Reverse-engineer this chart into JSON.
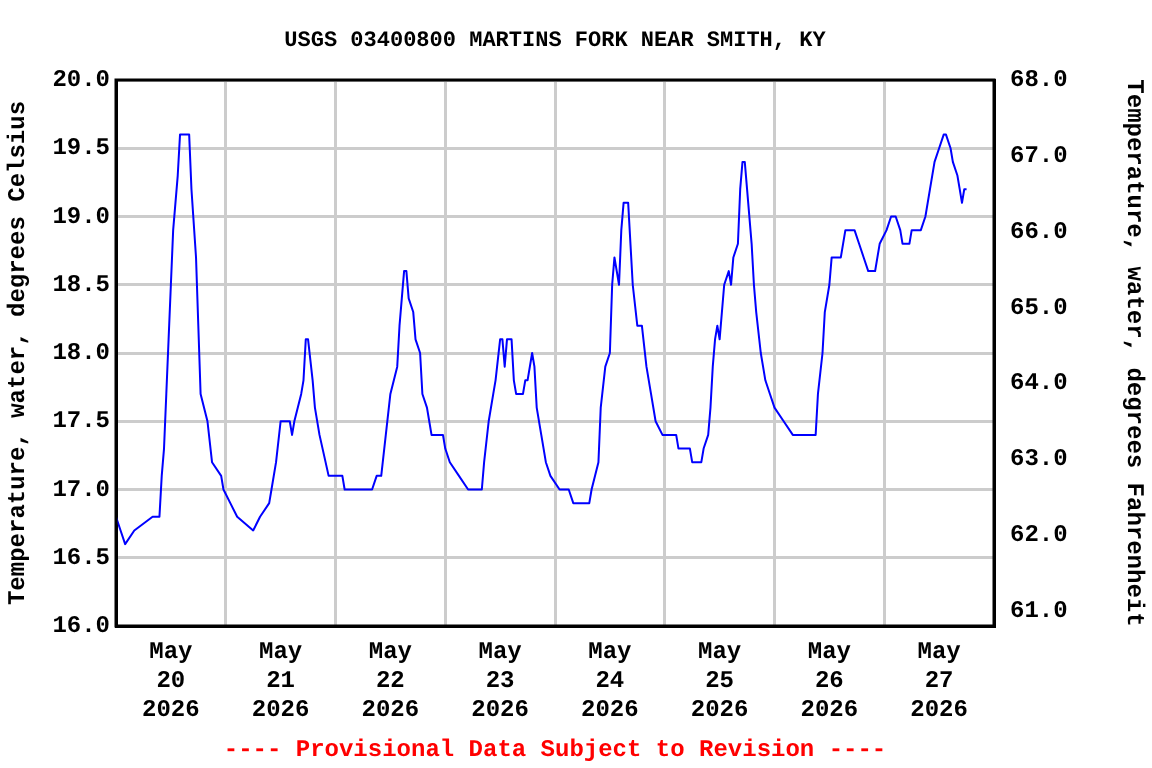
{
  "chart_data": {
    "type": "line",
    "title": "USGS 03400800 MARTINS FORK NEAR SMITH, KY",
    "ylabel": "Temperature, water, degrees Celsius",
    "y2label": "Temperature, water, degrees Fahrenheit",
    "annotations": [
      "---- Provisional Data Subject to Revision ----"
    ],
    "x": [
      "2026-05-20T00:00",
      "2026-05-20T01:00",
      "2026-05-20T02:00",
      "2026-05-20T04:00",
      "2026-05-20T08:00",
      "2026-05-20T09:30",
      "2026-05-20T10:00",
      "2026-05-20T10:30",
      "2026-05-20T11:00",
      "2026-05-20T11:30",
      "2026-05-20T12:00",
      "2026-05-20T12:30",
      "2026-05-20T13:30",
      "2026-05-20T14:00",
      "2026-05-20T16:00",
      "2026-05-20T16:30",
      "2026-05-20T17:30",
      "2026-05-20T18:00",
      "2026-05-20T18:30",
      "2026-05-20T20:00",
      "2026-05-20T21:00",
      "2026-05-20T23:00",
      "2026-05-20T23:30",
      "2026-05-21T01:00",
      "2026-05-21T02:30",
      "2026-05-21T06:00",
      "2026-05-21T07:30",
      "2026-05-21T09:30",
      "2026-05-21T10:00",
      "2026-05-21T11:00",
      "2026-05-21T12:00",
      "2026-05-21T14:00",
      "2026-05-21T14:30",
      "2026-05-21T15:00",
      "2026-05-21T16:30",
      "2026-05-21T17:00",
      "2026-05-21T17:30",
      "2026-05-21T18:00",
      "2026-05-21T19:00",
      "2026-05-21T19:30",
      "2026-05-21T20:30",
      "2026-05-21T22:30",
      "2026-05-22T01:30",
      "2026-05-22T02:00",
      "2026-05-22T08:00",
      "2026-05-22T09:00",
      "2026-05-22T10:00",
      "2026-05-22T11:00",
      "2026-05-22T12:00",
      "2026-05-22T13:30",
      "2026-05-22T14:00",
      "2026-05-22T14:30",
      "2026-05-22T15:00",
      "2026-05-22T15:30",
      "2026-05-22T16:00",
      "2026-05-22T17:00",
      "2026-05-22T17:30",
      "2026-05-22T18:30",
      "2026-05-22T19:00",
      "2026-05-22T20:00",
      "2026-05-22T20:30",
      "2026-05-22T21:00",
      "2026-05-22T23:30",
      "2026-05-23T00:00",
      "2026-05-23T01:00",
      "2026-05-23T03:00",
      "2026-05-23T05:00",
      "2026-05-23T08:00",
      "2026-05-23T08:30",
      "2026-05-23T09:30",
      "2026-05-23T10:30",
      "2026-05-23T11:00",
      "2026-05-23T12:00",
      "2026-05-23T12:30",
      "2026-05-23T13:00",
      "2026-05-23T13:30",
      "2026-05-23T14:30",
      "2026-05-23T15:00",
      "2026-05-23T15:30",
      "2026-05-23T17:00",
      "2026-05-23T17:30",
      "2026-05-23T18:00",
      "2026-05-23T19:00",
      "2026-05-23T19:30",
      "2026-05-23T20:00",
      "2026-05-23T21:00",
      "2026-05-23T22:00",
      "2026-05-23T23:00",
      "2026-05-24T01:00",
      "2026-05-24T03:00",
      "2026-05-24T04:00",
      "2026-05-24T07:30",
      "2026-05-24T08:00",
      "2026-05-24T09:30",
      "2026-05-24T10:00",
      "2026-05-24T11:00",
      "2026-05-24T12:00",
      "2026-05-24T12:30",
      "2026-05-24T13:00",
      "2026-05-24T14:00",
      "2026-05-24T14:30",
      "2026-05-24T15:00",
      "2026-05-24T16:00",
      "2026-05-24T17:00",
      "2026-05-24T18:00",
      "2026-05-24T19:00",
      "2026-05-24T20:00",
      "2026-05-24T21:00",
      "2026-05-24T22:00",
      "2026-05-24T23:30",
      "2026-05-25T02:30",
      "2026-05-25T03:00",
      "2026-05-25T05:30",
      "2026-05-25T06:00",
      "2026-05-25T08:00",
      "2026-05-25T08:30",
      "2026-05-25T09:30",
      "2026-05-25T10:00",
      "2026-05-25T10:30",
      "2026-05-25T11:00",
      "2026-05-25T11:30",
      "2026-05-25T12:00",
      "2026-05-25T13:00",
      "2026-05-25T14:00",
      "2026-05-25T14:30",
      "2026-05-25T15:00",
      "2026-05-25T16:00",
      "2026-05-25T16:30",
      "2026-05-25T17:00",
      "2026-05-25T17:30",
      "2026-05-25T18:00",
      "2026-05-25T19:00",
      "2026-05-25T19:30",
      "2026-05-25T20:00",
      "2026-05-25T21:00",
      "2026-05-25T21:30",
      "2026-05-25T22:00",
      "2026-05-25T23:00",
      "2026-05-26T00:00",
      "2026-05-26T02:00",
      "2026-05-26T04:00",
      "2026-05-26T09:00",
      "2026-05-26T09:30",
      "2026-05-26T10:30",
      "2026-05-26T11:00",
      "2026-05-26T12:00",
      "2026-05-26T12:30",
      "2026-05-26T14:30",
      "2026-05-26T15:30",
      "2026-05-26T17:30",
      "2026-05-26T18:30",
      "2026-05-26T19:30",
      "2026-05-26T20:30",
      "2026-05-26T22:00",
      "2026-05-26T23:00",
      "2026-05-27T00:30",
      "2026-05-27T01:30",
      "2026-05-27T02:30",
      "2026-05-27T03:30",
      "2026-05-27T04:00",
      "2026-05-27T05:30",
      "2026-05-27T06:00",
      "2026-05-27T08:00",
      "2026-05-27T09:00",
      "2026-05-27T10:00",
      "2026-05-27T11:00",
      "2026-05-27T12:00",
      "2026-05-27T13:00",
      "2026-05-27T13:30",
      "2026-05-27T14:30",
      "2026-05-27T15:00",
      "2026-05-27T16:00",
      "2026-05-27T16:30",
      "2026-05-27T17:00",
      "2026-05-27T17:30",
      "2026-05-27T18:00"
    ],
    "series": [
      {
        "color": "#0000ff",
        "values": [
          16.8,
          16.7,
          16.6,
          16.7,
          16.8,
          16.8,
          17.1,
          17.3,
          17.7,
          18.1,
          18.5,
          18.9,
          19.3,
          19.6,
          19.6,
          19.2,
          18.7,
          18.2,
          17.7,
          17.5,
          17.2,
          17.1,
          17.0,
          16.9,
          16.8,
          16.7,
          16.8,
          16.9,
          17.0,
          17.2,
          17.5,
          17.5,
          17.4,
          17.5,
          17.7,
          17.8,
          18.1,
          18.1,
          17.8,
          17.6,
          17.4,
          17.1,
          17.1,
          17.0,
          17.0,
          17.1,
          17.1,
          17.4,
          17.7,
          17.9,
          18.2,
          18.4,
          18.6,
          18.6,
          18.4,
          18.3,
          18.1,
          18.0,
          17.7,
          17.6,
          17.5,
          17.4,
          17.4,
          17.3,
          17.2,
          17.1,
          17.0,
          17.0,
          17.2,
          17.5,
          17.7,
          17.8,
          18.1,
          18.1,
          17.9,
          18.1,
          18.1,
          17.8,
          17.7,
          17.7,
          17.8,
          17.8,
          18.0,
          17.9,
          17.6,
          17.4,
          17.2,
          17.1,
          17.0,
          17.0,
          16.9,
          16.9,
          17.0,
          17.2,
          17.6,
          17.9,
          18.0,
          18.5,
          18.7,
          18.5,
          18.9,
          19.1,
          19.1,
          18.5,
          18.2,
          18.2,
          17.9,
          17.7,
          17.5,
          17.4,
          17.4,
          17.3,
          17.3,
          17.2,
          17.2,
          17.3,
          17.4,
          17.6,
          17.9,
          18.1,
          18.2,
          18.1,
          18.5,
          18.6,
          18.5,
          18.7,
          18.8,
          19.2,
          19.4,
          19.4,
          19.2,
          18.8,
          18.5,
          18.3,
          18.0,
          17.9,
          17.8,
          17.7,
          17.6,
          17.5,
          17.4,
          17.4,
          17.7,
          18.0,
          18.3,
          18.5,
          18.7,
          18.7,
          18.9,
          18.9,
          18.8,
          18.7,
          18.6,
          18.6,
          18.8,
          18.9,
          19.0,
          19.0,
          18.9,
          18.8,
          18.8,
          18.9,
          18.9,
          19.0,
          19.2,
          19.4,
          19.5,
          19.6,
          19.6,
          19.5,
          19.4,
          19.3,
          19.2,
          19.1,
          19.2,
          19.2
        ]
      }
    ],
    "xlim": [
      "2026-05-20T00:00",
      "2026-05-28T00:00"
    ],
    "xticks": [
      {
        "value": "2026-05-20T12:00",
        "label": "May 20 2026"
      },
      {
        "value": "2026-05-21T00:00",
        "label": null
      },
      {
        "value": "2026-05-21T12:00",
        "label": "May 21 2026"
      },
      {
        "value": "2026-05-22T00:00",
        "label": null
      },
      {
        "value": "2026-05-22T12:00",
        "label": "May 22 2026"
      },
      {
        "value": "2026-05-23T00:00",
        "label": null
      },
      {
        "value": "2026-05-23T12:00",
        "label": "May 23 2026"
      },
      {
        "value": "2026-05-24T00:00",
        "label": null
      },
      {
        "value": "2026-05-24T12:00",
        "label": "May 24 2026"
      },
      {
        "value": "2026-05-25T00:00",
        "label": null
      },
      {
        "value": "2026-05-25T12:00",
        "label": "May 25 2026"
      },
      {
        "value": "2026-05-26T00:00",
        "label": null
      },
      {
        "value": "2026-05-26T12:00",
        "label": "May 26 2026"
      },
      {
        "value": "2026-05-27T00:00",
        "label": null
      },
      {
        "value": "2026-05-27T12:00",
        "label": "May 27 2026"
      }
    ],
    "ylim": [
      16.0,
      20.0
    ],
    "yticks": [
      {
        "value": 16,
        "label": "16.0"
      },
      {
        "value": 16.5,
        "label": "16.5"
      },
      {
        "value": 17,
        "label": "17.0"
      },
      {
        "value": 17.5,
        "label": "17.5"
      },
      {
        "value": 18,
        "label": "18.0"
      },
      {
        "value": 18.5,
        "label": "18.5"
      },
      {
        "value": 19,
        "label": "19.0"
      },
      {
        "value": 19.5,
        "label": "19.5"
      },
      {
        "value": 20,
        "label": "20.0"
      }
    ],
    "y2lim": [
      60.8,
      68.0
    ],
    "y2ticks": [
      {
        "value": 61,
        "label": "61.0"
      },
      {
        "value": 62,
        "label": "62.0"
      },
      {
        "value": 63,
        "label": "63.0"
      },
      {
        "value": 64,
        "label": "64.0"
      },
      {
        "value": 65,
        "label": "65.0"
      },
      {
        "value": 66,
        "label": "66.0"
      },
      {
        "value": 67,
        "label": "67.0"
      },
      {
        "value": 68,
        "label": "68.0"
      }
    ],
    "grid": true,
    "legend": false
  }
}
